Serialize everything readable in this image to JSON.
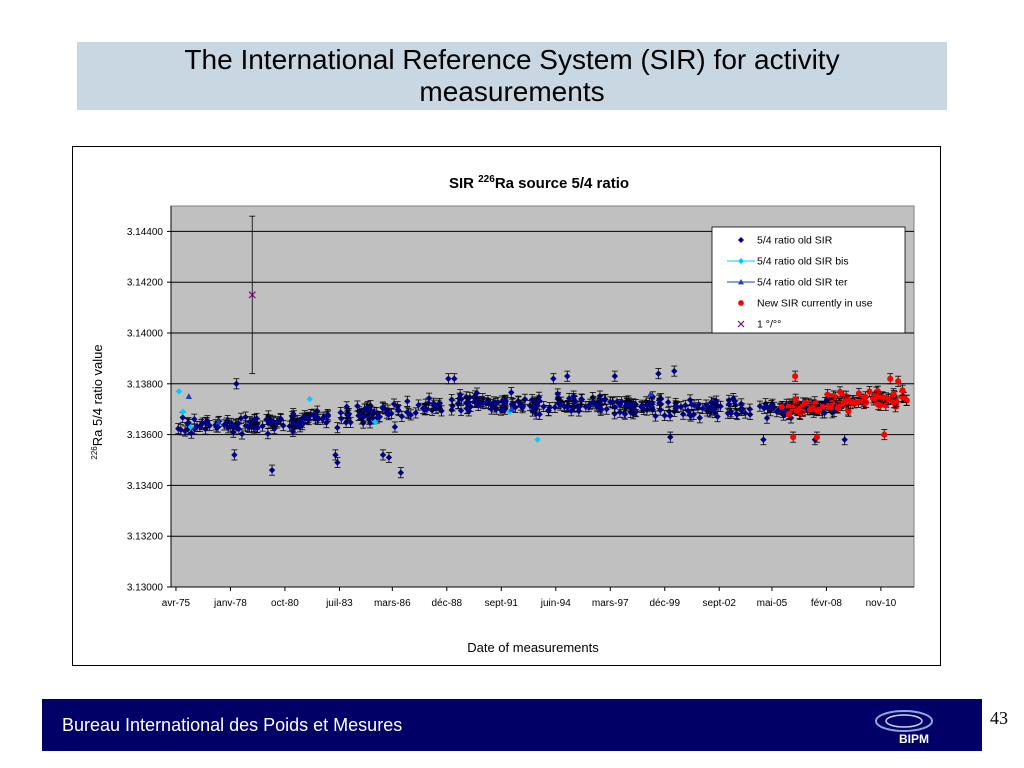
{
  "slide": {
    "title": "The International Reference System (SIR) for activity measurements",
    "footer_text": "Bureau International des Poids et Mesures",
    "logo_text": "BIPM",
    "page_number": "43"
  },
  "colors": {
    "title_bg": "#c9d7e3",
    "footer_bg": "#000066",
    "plot_bg": "#c0c0c0",
    "old_sir": "#00008b",
    "old_sir_bis": "#00ccff",
    "old_sir_ter": "#1f3fbf",
    "new_sir": "#ff0000",
    "one_permille": "#800080"
  },
  "chart_data": {
    "type": "scatter",
    "title_main": "SIR ",
    "title_sup": "226",
    "title_rest": "Ra source 5/4 ratio",
    "xlabel": "Date of measurements",
    "ylabel_sup": "226",
    "ylabel_rest": "Ra 5/4 ratio value",
    "ylim": [
      3.13,
      3.145
    ],
    "yticks": [
      3.13,
      3.132,
      3.134,
      3.136,
      3.138,
      3.14,
      3.142,
      3.144
    ],
    "ytick_labels": [
      "3.13000",
      "3.13200",
      "3.13400",
      "3.13600",
      "3.13800",
      "3.14000",
      "3.14200",
      "3.14400"
    ],
    "xlim": [
      1975.0,
      2012.5
    ],
    "xtick_labels": [
      "avr-75",
      "janv-78",
      "oct-80",
      "juil-83",
      "mars-86",
      "déc-88",
      "sept-91",
      "juin-94",
      "mars-97",
      "déc-99",
      "sept-02",
      "mai-05",
      "févr-08",
      "nov-10"
    ],
    "xtick_years": [
      1975.25,
      1978.0,
      1980.75,
      1983.5,
      1986.17,
      1988.92,
      1991.67,
      1994.42,
      1997.17,
      1999.92,
      2002.67,
      2005.33,
      2008.08,
      2010.83
    ],
    "grid": "horizontal",
    "legend_position": "top-right",
    "series": [
      {
        "name": "5/4 ratio old SIR",
        "marker": "diamond",
        "trend": [
          [
            1975.3,
            3.1364
          ],
          [
            1980.0,
            3.1364
          ],
          [
            1985.0,
            3.1368
          ],
          [
            1990.0,
            3.1373
          ],
          [
            1995.0,
            3.1372
          ],
          [
            2000.0,
            3.1371
          ],
          [
            2005.0,
            3.137
          ],
          [
            2009.0,
            3.1371
          ]
        ],
        "spread": 0.0005,
        "x_range": [
          1975.3,
          2009.2
        ],
        "count": 480,
        "error": 0.0002,
        "outliers": [
          [
            1978.3,
            3.138
          ],
          [
            1978.2,
            3.1352
          ],
          [
            1980.1,
            3.1346
          ],
          [
            1983.4,
            3.1349
          ],
          [
            1983.3,
            3.1352
          ],
          [
            1986.0,
            3.1351
          ],
          [
            1986.6,
            3.1345
          ],
          [
            1985.7,
            3.1352
          ],
          [
            1986.3,
            3.1363
          ],
          [
            1995.0,
            3.1383
          ],
          [
            1997.4,
            3.1383
          ],
          [
            1999.6,
            3.1384
          ],
          [
            2000.4,
            3.1385
          ],
          [
            1994.3,
            3.1382
          ],
          [
            1989.3,
            3.1382
          ],
          [
            1989.0,
            3.1382
          ],
          [
            2000.2,
            3.1359
          ],
          [
            2004.9,
            3.1358
          ],
          [
            2007.5,
            3.1358
          ],
          [
            2009.0,
            3.1358
          ]
        ]
      },
      {
        "name": "5/4 ratio old SIR bis",
        "marker": "diamond",
        "points": [
          [
            1975.4,
            3.1377
          ],
          [
            1975.6,
            3.1369
          ],
          [
            1976.0,
            3.1363
          ],
          [
            1982.0,
            3.1374
          ],
          [
            1985.3,
            3.1365
          ],
          [
            1992.1,
            3.1369
          ],
          [
            1993.5,
            3.1358
          ]
        ]
      },
      {
        "name": "5/4 ratio old SIR ter",
        "marker": "triangle",
        "points": [
          [
            1975.9,
            3.1375
          ],
          [
            1977.4,
            3.1365
          ],
          [
            1992.2,
            3.137
          ],
          [
            1999.2,
            3.1376
          ]
        ]
      },
      {
        "name": "New SIR currently in use",
        "marker": "circle",
        "trend": [
          [
            2005.8,
            3.137
          ],
          [
            2008.0,
            3.1372
          ],
          [
            2011.0,
            3.1374
          ],
          [
            2012.0,
            3.1375
          ]
        ],
        "spread": 0.0005,
        "x_range": [
          2005.8,
          2012.2
        ],
        "count": 95,
        "error": 0.0002,
        "outliers": [
          [
            2006.5,
            3.1383
          ],
          [
            2006.4,
            3.1359
          ],
          [
            2007.6,
            3.1359
          ],
          [
            2011.0,
            3.136
          ],
          [
            2011.7,
            3.1381
          ],
          [
            2011.3,
            3.1382
          ]
        ]
      },
      {
        "name": "1 °/°°",
        "marker": "cross",
        "points": [
          [
            1979.1,
            3.1415
          ]
        ],
        "error_low": 3.1384,
        "error_high": 3.1446
      }
    ]
  }
}
